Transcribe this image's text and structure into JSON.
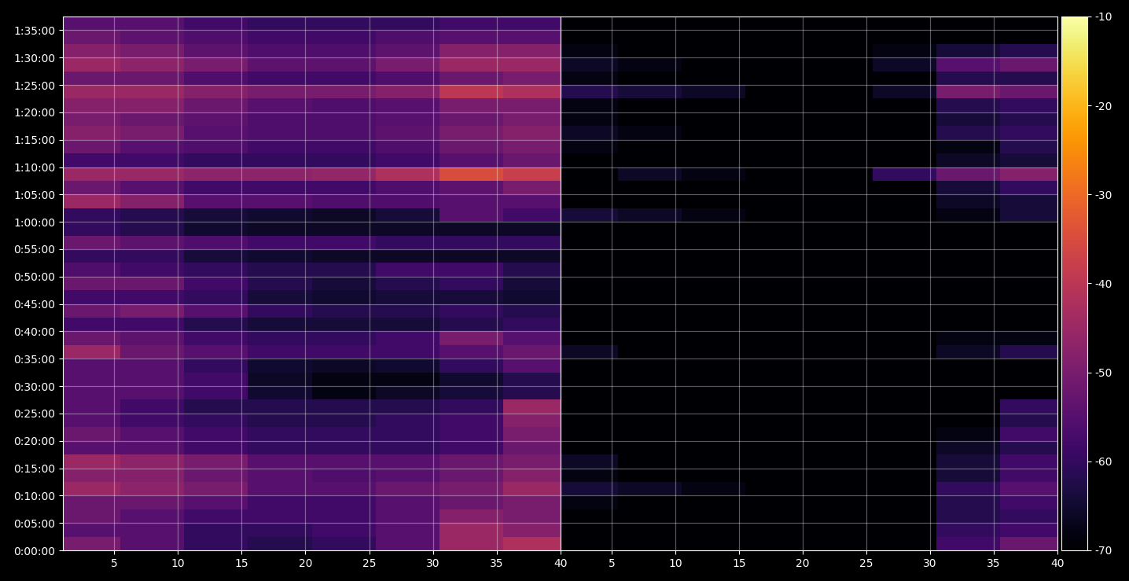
{
  "chart_data": [
    {
      "type": "heatmap",
      "color": "inferno",
      "grid": true,
      "x": [
        0.5,
        5.5,
        10.5,
        15.5,
        20.5,
        25.5,
        30.5,
        35.5,
        40.5
      ],
      "y": [
        0,
        150,
        300,
        450,
        600,
        750,
        900,
        1050,
        1200,
        1350,
        1500,
        1650,
        1800,
        1950,
        2100,
        2250,
        2400,
        2550,
        2700,
        2850,
        3000,
        3150,
        3300,
        3450,
        3600,
        3750,
        3900,
        4050,
        4200,
        4350,
        4500,
        4650,
        4800,
        4950,
        5100,
        5250,
        5400,
        5550,
        5700,
        5850
      ],
      "xlim": [
        1,
        40
      ],
      "xticks": [
        5,
        10,
        15,
        20,
        25,
        30,
        35,
        40
      ],
      "ylim": [
        0,
        5850
      ],
      "yticks": [
        {
          "value": 0,
          "label": "0:00:00"
        },
        {
          "value": 300,
          "label": "0:05:00"
        },
        {
          "value": 600,
          "label": "0:10:00"
        },
        {
          "value": 900,
          "label": "0:15:00"
        },
        {
          "value": 1200,
          "label": "0:20:00"
        },
        {
          "value": 1500,
          "label": "0:25:00"
        },
        {
          "value": 1800,
          "label": "0:30:00"
        },
        {
          "value": 2100,
          "label": "0:35:00"
        },
        {
          "value": 2400,
          "label": "0:40:00"
        },
        {
          "value": 2700,
          "label": "0:45:00"
        },
        {
          "value": 3000,
          "label": "0:50:00"
        },
        {
          "value": 3300,
          "label": "0:55:00"
        },
        {
          "value": 3600,
          "label": "1:00:00"
        },
        {
          "value": 3900,
          "label": "1:05:00"
        },
        {
          "value": 4200,
          "label": "1:10:00"
        },
        {
          "value": 4500,
          "label": "1:15:00"
        },
        {
          "value": 4800,
          "label": "1:20:00"
        },
        {
          "value": 5100,
          "label": "1:25:00"
        },
        {
          "value": 5400,
          "label": "1:30:00"
        },
        {
          "value": 5700,
          "label": "1:35:00"
        }
      ],
      "values": [
        [
          -50,
          -55,
          -60,
          -62,
          -60,
          -55,
          -45,
          -42
        ],
        [
          -55,
          -55,
          -60,
          -60,
          -58,
          -55,
          -45,
          -48
        ],
        [
          -52,
          -55,
          -58,
          -58,
          -58,
          -55,
          -48,
          -50
        ],
        [
          -52,
          -52,
          -55,
          -58,
          -58,
          -55,
          -52,
          -50
        ],
        [
          -45,
          -47,
          -50,
          -55,
          -55,
          -52,
          -50,
          -45
        ],
        [
          -48,
          -48,
          -52,
          -55,
          -56,
          -55,
          -52,
          -48
        ],
        [
          -45,
          -47,
          -50,
          -55,
          -55,
          -55,
          -52,
          -50
        ],
        [
          -55,
          -55,
          -58,
          -60,
          -60,
          -60,
          -58,
          -52
        ],
        [
          -52,
          -55,
          -58,
          -60,
          -60,
          -60,
          -58,
          -50
        ],
        [
          -55,
          -58,
          -60,
          -62,
          -62,
          -60,
          -58,
          -48
        ],
        [
          -55,
          -58,
          -62,
          -62,
          -62,
          -62,
          -60,
          -45
        ],
        [
          -55,
          -55,
          -58,
          -65,
          -68,
          -66,
          -64,
          -62
        ],
        [
          -55,
          -55,
          -58,
          -66,
          -68,
          -68,
          -65,
          -62
        ],
        [
          -55,
          -55,
          -60,
          -65,
          -66,
          -65,
          -60,
          -55
        ],
        [
          -45,
          -52,
          -55,
          -58,
          -58,
          -58,
          -55,
          -52
        ],
        [
          -52,
          -54,
          -58,
          -60,
          -60,
          -58,
          -50,
          -55
        ],
        [
          -58,
          -58,
          -62,
          -64,
          -64,
          -64,
          -62,
          -60
        ],
        [
          -52,
          -50,
          -55,
          -60,
          -62,
          -62,
          -60,
          -62
        ],
        [
          -58,
          -58,
          -60,
          -64,
          -65,
          -64,
          -64,
          -65
        ],
        [
          -52,
          -52,
          -58,
          -62,
          -64,
          -62,
          -60,
          -64
        ],
        [
          -56,
          -58,
          -60,
          -62,
          -62,
          -58,
          -58,
          -62
        ],
        [
          -60,
          -60,
          -64,
          -65,
          -66,
          -66,
          -66,
          -66
        ],
        [
          -52,
          -54,
          -56,
          -58,
          -58,
          -60,
          -60,
          -60
        ],
        [
          -60,
          -62,
          -65,
          -66,
          -66,
          -66,
          -66,
          -66
        ],
        [
          -60,
          -62,
          -64,
          -65,
          -66,
          -64,
          -55,
          -58
        ],
        [
          -45,
          -48,
          -55,
          -55,
          -56,
          -56,
          -55,
          -55
        ],
        [
          -52,
          -55,
          -58,
          -58,
          -58,
          -56,
          -54,
          -50
        ],
        [
          -45,
          -45,
          -47,
          -47,
          -46,
          -42,
          -35,
          -38
        ],
        [
          -58,
          -58,
          -60,
          -60,
          -60,
          -58,
          -55,
          -52
        ],
        [
          -52,
          -55,
          -56,
          -58,
          -58,
          -56,
          -52,
          -50
        ],
        [
          -48,
          -50,
          -55,
          -56,
          -56,
          -54,
          -50,
          -48
        ],
        [
          -50,
          -52,
          -54,
          -56,
          -56,
          -55,
          -52,
          -50
        ],
        [
          -48,
          -48,
          -52,
          -55,
          -56,
          -55,
          -50,
          -50
        ],
        [
          -45,
          -45,
          -48,
          -50,
          -50,
          -48,
          -40,
          -42
        ],
        [
          -52,
          -52,
          -56,
          -58,
          -58,
          -56,
          -52,
          -50
        ],
        [
          -45,
          -47,
          -50,
          -54,
          -54,
          -50,
          -45,
          -45
        ],
        [
          -48,
          -50,
          -54,
          -56,
          -56,
          -54,
          -48,
          -48
        ],
        [
          -52,
          -54,
          -56,
          -58,
          -58,
          -56,
          -55,
          -55
        ],
        [
          -55,
          -55,
          -58,
          -60,
          -60,
          -60,
          -58,
          -58
        ]
      ]
    },
    {
      "type": "heatmap",
      "color": "inferno",
      "grid": true,
      "tick_labels": "x",
      "x": [
        0.5,
        5.5,
        10.5,
        15.5,
        20.5,
        25.5,
        30.5,
        35.5,
        40.5
      ],
      "y": [
        0,
        150,
        300,
        450,
        600,
        750,
        900,
        1050,
        1200,
        1350,
        1500,
        1650,
        1800,
        1950,
        2100,
        2250,
        2400,
        2550,
        2700,
        2850,
        3000,
        3150,
        3300,
        3450,
        3600,
        3750,
        3900,
        4050,
        4200,
        4350,
        4500,
        4650,
        4800,
        4950,
        5100,
        5250,
        5400,
        5550,
        5700,
        5850
      ],
      "xlim": [
        1,
        40
      ],
      "xticks": [
        5,
        10,
        15,
        20,
        25,
        30,
        35,
        40
      ],
      "ylim": [
        0,
        5850
      ],
      "yticks": [
        0,
        300,
        600,
        900,
        1200,
        1500,
        1800,
        2100,
        2400,
        2700,
        3000,
        3300,
        3600,
        3900,
        4200,
        4500,
        4800,
        5100,
        5400,
        5700
      ],
      "colorbar_lim": [
        -70,
        -10
      ],
      "colorbar_ticks": [
        -70,
        -60,
        -50,
        -40,
        -30,
        -20,
        -10
      ],
      "values": [
        [
          -70,
          -70,
          -70,
          -70,
          -70,
          -70,
          -58,
          -52
        ],
        [
          -70,
          -70,
          -70,
          -70,
          -70,
          -70,
          -60,
          -58
        ],
        [
          -70,
          -70,
          -70,
          -70,
          -70,
          -70,
          -62,
          -60
        ],
        [
          -68,
          -70,
          -70,
          -70,
          -70,
          -70,
          -62,
          -58
        ],
        [
          -64,
          -66,
          -68,
          -70,
          -70,
          -70,
          -60,
          -55
        ],
        [
          -68,
          -70,
          -70,
          -70,
          -70,
          -70,
          -64,
          -58
        ],
        [
          -66,
          -70,
          -70,
          -70,
          -70,
          -70,
          -64,
          -58
        ],
        [
          -70,
          -70,
          -70,
          -70,
          -70,
          -70,
          -66,
          -62
        ],
        [
          -70,
          -70,
          -70,
          -70,
          -70,
          -70,
          -68,
          -58
        ],
        [
          -70,
          -70,
          -70,
          -70,
          -70,
          -70,
          -70,
          -62
        ],
        [
          -70,
          -70,
          -70,
          -70,
          -70,
          -70,
          -70,
          -60
        ],
        [
          -70,
          -70,
          -70,
          -70,
          -70,
          -70,
          -70,
          -70
        ],
        [
          -70,
          -70,
          -70,
          -70,
          -70,
          -70,
          -70,
          -70
        ],
        [
          -70,
          -70,
          -70,
          -70,
          -70,
          -70,
          -70,
          -70
        ],
        [
          -66,
          -70,
          -70,
          -70,
          -70,
          -70,
          -66,
          -62
        ],
        [
          -70,
          -70,
          -70,
          -70,
          -70,
          -70,
          -68,
          -68
        ],
        [
          -70,
          -70,
          -70,
          -70,
          -70,
          -70,
          -70,
          -70
        ],
        [
          -70,
          -70,
          -70,
          -70,
          -70,
          -70,
          -70,
          -70
        ],
        [
          -70,
          -70,
          -70,
          -70,
          -70,
          -70,
          -70,
          -70
        ],
        [
          -70,
          -70,
          -70,
          -70,
          -70,
          -70,
          -70,
          -70
        ],
        [
          -70,
          -70,
          -70,
          -70,
          -70,
          -70,
          -70,
          -70
        ],
        [
          -70,
          -70,
          -70,
          -70,
          -70,
          -70,
          -70,
          -70
        ],
        [
          -70,
          -70,
          -70,
          -70,
          -70,
          -70,
          -70,
          -70
        ],
        [
          -70,
          -70,
          -70,
          -70,
          -70,
          -70,
          -70,
          -70
        ],
        [
          -64,
          -66,
          -68,
          -70,
          -70,
          -70,
          -68,
          -64
        ],
        [
          -70,
          -70,
          -70,
          -70,
          -70,
          -70,
          -66,
          -64
        ],
        [
          -70,
          -70,
          -70,
          -70,
          -70,
          -70,
          -64,
          -60
        ],
        [
          -70,
          -66,
          -68,
          -70,
          -70,
          -60,
          -52,
          -48
        ],
        [
          -70,
          -70,
          -70,
          -70,
          -70,
          -70,
          -66,
          -64
        ],
        [
          -68,
          -70,
          -70,
          -70,
          -70,
          -70,
          -68,
          -62
        ],
        [
          -66,
          -68,
          -70,
          -70,
          -70,
          -70,
          -62,
          -60
        ],
        [
          -68,
          -70,
          -70,
          -70,
          -70,
          -70,
          -64,
          -62
        ],
        [
          -68,
          -70,
          -70,
          -70,
          -70,
          -70,
          -62,
          -60
        ],
        [
          -62,
          -64,
          -66,
          -70,
          -70,
          -66,
          -50,
          -52
        ],
        [
          -68,
          -70,
          -70,
          -70,
          -70,
          -70,
          -62,
          -62
        ],
        [
          -66,
          -68,
          -70,
          -70,
          -70,
          -66,
          -55,
          -52
        ],
        [
          -68,
          -70,
          -70,
          -70,
          -70,
          -68,
          -64,
          -62
        ],
        [
          -70,
          -70,
          -70,
          -70,
          -70,
          -70,
          -70,
          -70
        ],
        [
          -70,
          -70,
          -70,
          -70,
          -70,
          -70,
          -70,
          -70
        ]
      ]
    }
  ]
}
